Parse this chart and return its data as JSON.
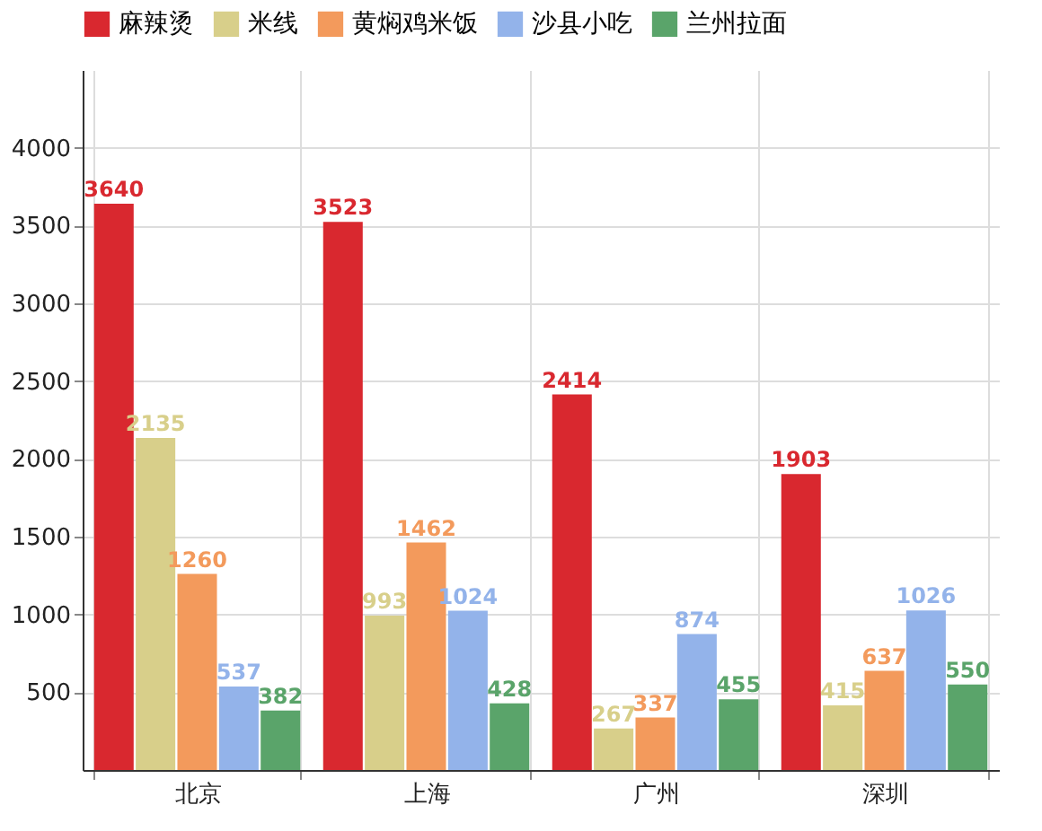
{
  "chart_data": {
    "type": "bar",
    "categories": [
      "北京",
      "上海",
      "广州",
      "深圳"
    ],
    "series": [
      {
        "name": "麻辣烫",
        "color": "#d9282f",
        "values": [
          3640,
          3523,
          2414,
          1903
        ]
      },
      {
        "name": "米线",
        "color": "#d8cf8a",
        "values": [
          2135,
          993,
          267,
          415
        ]
      },
      {
        "name": "黄焖鸡米饭",
        "color": "#f39a5c",
        "values": [
          1260,
          1462,
          337,
          637
        ]
      },
      {
        "name": "沙县小吃",
        "color": "#93b3ea",
        "values": [
          537,
          1024,
          874,
          1026
        ]
      },
      {
        "name": "兰州拉面",
        "color": "#5aa46a",
        "values": [
          382,
          428,
          455,
          550
        ]
      }
    ],
    "ylim": [
      0,
      4500
    ],
    "yticks": [
      500,
      1000,
      1500,
      2000,
      2500,
      3000,
      3500,
      4000
    ],
    "grid": true,
    "legend": "top",
    "data_labels": true
  }
}
